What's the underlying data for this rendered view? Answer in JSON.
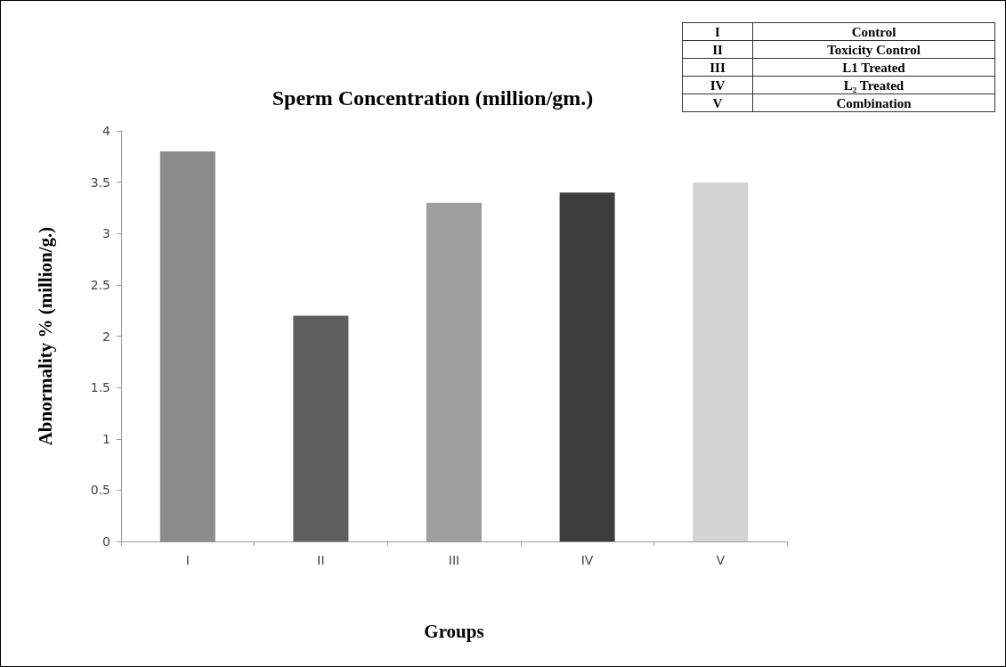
{
  "chart_data": {
    "type": "bar",
    "title": "Sperm Concentration (million/gm.)",
    "xlabel": "Groups",
    "ylabel": "Abnormality % (million/g.)",
    "categories": [
      "I",
      "II",
      "III",
      "IV",
      "V"
    ],
    "values": [
      3.8,
      2.2,
      3.3,
      3.4,
      3.5
    ],
    "colors": [
      "#8c8c8c",
      "#5e5e5e",
      "#9e9e9e",
      "#3c3c3c",
      "#d4d4d4"
    ],
    "ylim": [
      0,
      4
    ],
    "yticks": [
      0,
      0.5,
      1,
      1.5,
      2,
      2.5,
      3,
      3.5,
      4
    ],
    "grid": false,
    "annotations": [
      "I",
      "Control",
      "II",
      "Toxicity Control",
      "III",
      "L1 Treated",
      "IV",
      "L₂ Treated",
      "V",
      "Combination"
    ]
  }
}
